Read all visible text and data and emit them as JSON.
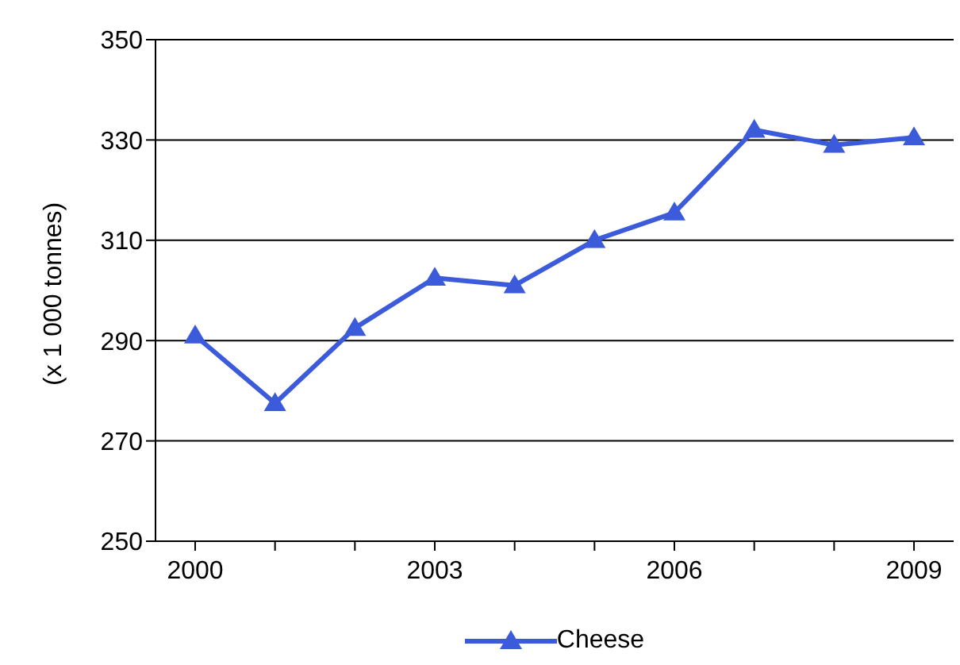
{
  "chart_data": {
    "type": "line",
    "ylabel": "(x 1 000 tonnes)",
    "categories": [
      "2000",
      null,
      null,
      "2003",
      null,
      null,
      "2006",
      null,
      null,
      "2009"
    ],
    "series": [
      {
        "name": "Cheese",
        "color": "#3b5bdb",
        "values": [
          291,
          277.5,
          292.5,
          302.5,
          301,
          310,
          315.5,
          332,
          329,
          330.5
        ]
      }
    ],
    "ylim": [
      250,
      350
    ],
    "yticks": [
      250,
      270,
      290,
      310,
      330,
      350
    ],
    "grid": "y",
    "legend": "bottom",
    "marker": "triangle",
    "line_style": "solid"
  }
}
